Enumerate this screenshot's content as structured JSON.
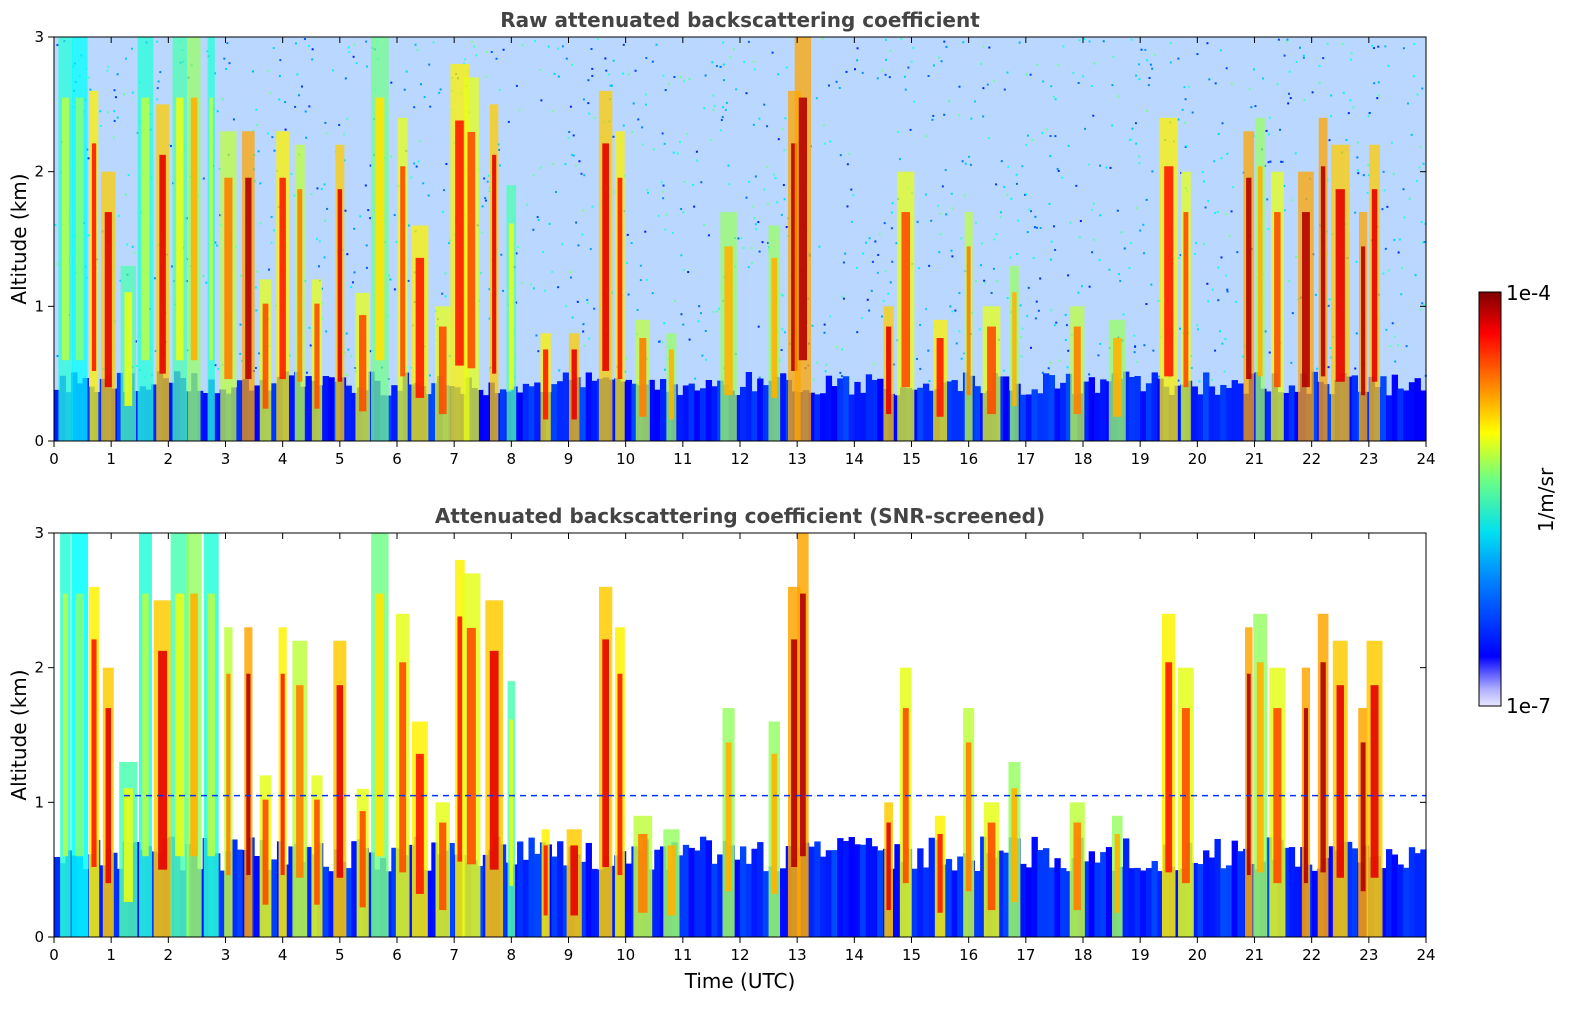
{
  "chart_data": [
    {
      "type": "heatmap",
      "title": "Raw attenuated backscattering coefficient",
      "xlabel": "",
      "ylabel": "Altitude (km)",
      "xlim": [
        0,
        24
      ],
      "ylim": [
        0,
        3
      ],
      "xticks": [
        "0",
        "1",
        "2",
        "3",
        "4",
        "5",
        "6",
        "7",
        "8",
        "9",
        "10",
        "11",
        "12",
        "13",
        "14",
        "15",
        "16",
        "17",
        "18",
        "19",
        "20",
        "21",
        "22",
        "23",
        "24"
      ],
      "yticks": [
        "0",
        "1",
        "2",
        "3"
      ],
      "surface_layer_top_km": 0.45,
      "noise_region": "above ~0.5 km, sparse speckle",
      "features": [
        {
          "t": 0.2,
          "top": 3.0,
          "level": 0.55
        },
        {
          "t": 0.45,
          "top": 3.0,
          "level": 0.5
        },
        {
          "t": 0.7,
          "top": 2.6,
          "level": 0.85
        },
        {
          "t": 0.95,
          "top": 2.0,
          "level": 0.9
        },
        {
          "t": 1.3,
          "top": 1.3,
          "level": 0.6
        },
        {
          "t": 1.6,
          "top": 3.0,
          "level": 0.55
        },
        {
          "t": 1.9,
          "top": 2.5,
          "level": 0.9
        },
        {
          "t": 2.2,
          "top": 3.0,
          "level": 0.6
        },
        {
          "t": 2.45,
          "top": 3.0,
          "level": 0.7
        },
        {
          "t": 2.75,
          "top": 3.0,
          "level": 0.55
        },
        {
          "t": 3.05,
          "top": 2.3,
          "level": 0.75
        },
        {
          "t": 3.4,
          "top": 2.3,
          "level": 0.95
        },
        {
          "t": 3.7,
          "top": 1.2,
          "level": 0.8
        },
        {
          "t": 4.0,
          "top": 2.3,
          "level": 0.85
        },
        {
          "t": 4.3,
          "top": 2.2,
          "level": 0.75
        },
        {
          "t": 4.6,
          "top": 1.2,
          "level": 0.8
        },
        {
          "t": 5.0,
          "top": 2.2,
          "level": 0.9
        },
        {
          "t": 5.4,
          "top": 1.1,
          "level": 0.8
        },
        {
          "t": 5.7,
          "top": 3.0,
          "level": 0.65
        },
        {
          "t": 6.1,
          "top": 2.4,
          "level": 0.8
        },
        {
          "t": 6.4,
          "top": 1.6,
          "level": 0.85
        },
        {
          "t": 6.8,
          "top": 1.0,
          "level": 0.8
        },
        {
          "t": 7.1,
          "top": 2.8,
          "level": 0.85
        },
        {
          "t": 7.3,
          "top": 2.7,
          "level": 0.8
        },
        {
          "t": 7.7,
          "top": 2.5,
          "level": 0.9
        },
        {
          "t": 8.0,
          "top": 1.9,
          "level": 0.6
        },
        {
          "t": 8.6,
          "top": 0.8,
          "level": 0.85
        },
        {
          "t": 9.1,
          "top": 0.8,
          "level": 0.9
        },
        {
          "t": 9.65,
          "top": 2.6,
          "level": 0.9
        },
        {
          "t": 9.9,
          "top": 2.3,
          "level": 0.85
        },
        {
          "t": 10.3,
          "top": 0.9,
          "level": 0.75
        },
        {
          "t": 10.8,
          "top": 0.8,
          "level": 0.7
        },
        {
          "t": 11.8,
          "top": 1.7,
          "level": 0.7
        },
        {
          "t": 12.6,
          "top": 1.6,
          "level": 0.7
        },
        {
          "t": 12.95,
          "top": 2.6,
          "level": 0.95
        },
        {
          "t": 13.1,
          "top": 3.0,
          "level": 0.95
        },
        {
          "t": 14.6,
          "top": 1.0,
          "level": 0.9
        },
        {
          "t": 14.9,
          "top": 2.0,
          "level": 0.8
        },
        {
          "t": 15.5,
          "top": 0.9,
          "level": 0.85
        },
        {
          "t": 16.0,
          "top": 1.7,
          "level": 0.75
        },
        {
          "t": 16.4,
          "top": 1.0,
          "level": 0.8
        },
        {
          "t": 16.8,
          "top": 1.3,
          "level": 0.7
        },
        {
          "t": 17.9,
          "top": 1.0,
          "level": 0.75
        },
        {
          "t": 18.6,
          "top": 0.9,
          "level": 0.7
        },
        {
          "t": 19.5,
          "top": 2.4,
          "level": 0.85
        },
        {
          "t": 19.8,
          "top": 2.0,
          "level": 0.8
        },
        {
          "t": 20.9,
          "top": 2.3,
          "level": 0.95
        },
        {
          "t": 21.1,
          "top": 2.4,
          "level": 0.7
        },
        {
          "t": 21.4,
          "top": 2.0,
          "level": 0.8
        },
        {
          "t": 21.9,
          "top": 2.0,
          "level": 0.95
        },
        {
          "t": 22.2,
          "top": 2.4,
          "level": 0.95
        },
        {
          "t": 22.5,
          "top": 2.2,
          "level": 0.9
        },
        {
          "t": 22.9,
          "top": 1.7,
          "level": 0.95
        },
        {
          "t": 23.1,
          "top": 2.2,
          "level": 0.9
        }
      ]
    },
    {
      "type": "heatmap",
      "title": "Attenuated backscattering coefficient (SNR-screened)",
      "xlabel": "Time (UTC)",
      "ylabel": "Altitude (km)",
      "xlim": [
        0,
        24
      ],
      "ylim": [
        0,
        3
      ],
      "xticks": [
        "0",
        "1",
        "2",
        "3",
        "4",
        "5",
        "6",
        "7",
        "8",
        "9",
        "10",
        "11",
        "12",
        "13",
        "14",
        "15",
        "16",
        "17",
        "18",
        "19",
        "20",
        "21",
        "22",
        "23",
        "24"
      ],
      "yticks": [
        "0",
        "1",
        "2",
        "3"
      ],
      "surface_layer_top_km": 0.65,
      "noise_screened": true,
      "dashed_line_altitude_km": 1.05,
      "same_features_as": "Raw attenuated backscattering coefficient"
    }
  ],
  "colorbar": {
    "label": "1/m/sr",
    "max_label": "1e-4",
    "min_label": "1e-7",
    "colormap": "jet"
  }
}
